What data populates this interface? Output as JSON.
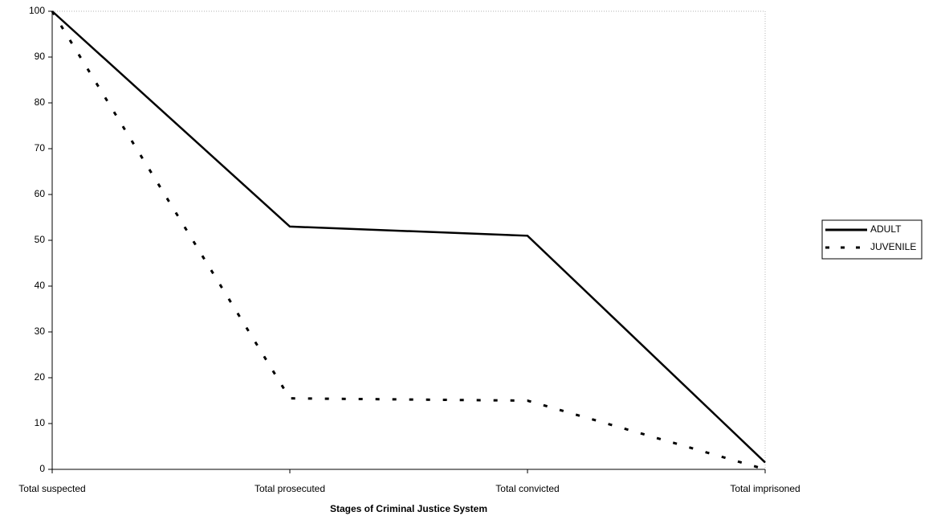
{
  "chart_data": {
    "type": "line",
    "xlabel": "Stages of Criminal Justice System",
    "categories": [
      "Total suspected",
      "Total prosecuted",
      "Total convicted",
      "Total imprisoned"
    ],
    "series": [
      {
        "name": "ADULT",
        "color": "#000000",
        "style": "solid",
        "values": [
          100,
          53,
          51,
          1.5
        ]
      },
      {
        "name": "JUVENILE",
        "color": "#000000",
        "style": "dashed",
        "values": [
          100,
          15.5,
          15,
          0
        ]
      }
    ],
    "ylim": [
      0,
      100
    ],
    "yticks": [
      0,
      10,
      20,
      30,
      40,
      50,
      60,
      70,
      80,
      90,
      100
    ],
    "legend": "right"
  }
}
